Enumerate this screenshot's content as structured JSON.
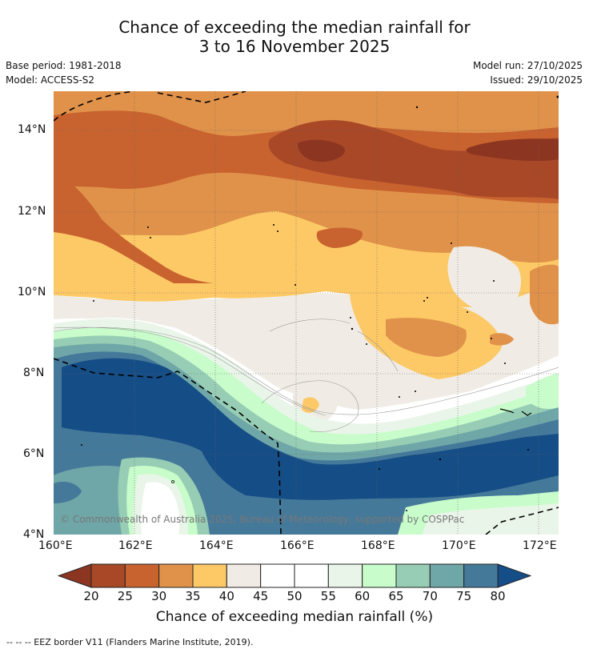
{
  "title": {
    "line1": "Chance of exceeding the median rainfall for",
    "line2": "3 to 16 November 2025"
  },
  "meta": {
    "base_period": "Base period: 1981-2018",
    "model": "Model: ACCESS-S2",
    "model_run": "Model run: 27/10/2025",
    "issued": "Issued: 29/10/2025"
  },
  "axes": {
    "lat_labels": [
      "14°N",
      "12°N",
      "10°N",
      "8°N",
      "6°N",
      "4°N"
    ],
    "lon_labels": [
      "160°E",
      "162°E",
      "164°E",
      "166°E",
      "168°E",
      "170°E",
      "172°E"
    ]
  },
  "copyright": "© Commonwealth of Australia 2025, Bureau of Meteorology, supported by COSPPac",
  "colorbar": {
    "title": "Chance of exceeding median rainfall (%)",
    "ticks": [
      "20",
      "25",
      "30",
      "35",
      "40",
      "45",
      "50",
      "55",
      "60",
      "65",
      "70",
      "75",
      "80"
    ],
    "colors": [
      "#a84827",
      "#c8632f",
      "#e0924a",
      "#fdc966",
      "#f0ece5",
      "#ffffff",
      "#ffffff",
      "#eaf5ea",
      "#c8fccb",
      "#97cdb4",
      "#6fa7a8",
      "#45799a"
    ],
    "under_color": "#8c3521",
    "over_color": "#154d86"
  },
  "footnote": "-- -- -- EEZ border V11 (Flanders Marine Institute, 2019)."
}
